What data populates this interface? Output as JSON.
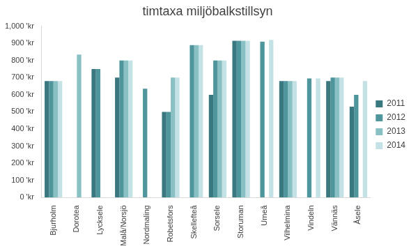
{
  "chart_data": {
    "type": "bar",
    "title": "timtaxa miljöbalkstillsyn",
    "categories": [
      "Bjurholm",
      "Dorotea",
      "Lycksele",
      "Malå/Norsjö",
      "Nordmaling",
      "Robetsfors",
      "Skellefteå",
      "Sorsele",
      "Storuman",
      "Umeå",
      "Vilhelmina",
      "Vindeln",
      "Vännäs",
      "Åsele"
    ],
    "series": [
      {
        "name": "2011",
        "color": "#3a7880",
        "values": [
          680,
          null,
          750,
          700,
          null,
          500,
          null,
          600,
          915,
          null,
          680,
          null,
          680,
          530
        ]
      },
      {
        "name": "2012",
        "color": "#4e969c",
        "values": [
          680,
          null,
          750,
          800,
          635,
          500,
          890,
          800,
          915,
          910,
          680,
          695,
          700,
          600
        ]
      },
      {
        "name": "2013",
        "color": "#89c0c4",
        "values": [
          680,
          835,
          null,
          800,
          null,
          700,
          890,
          800,
          915,
          null,
          680,
          null,
          700,
          null
        ]
      },
      {
        "name": "2014",
        "color": "#c4e2e5",
        "values": [
          680,
          null,
          null,
          800,
          null,
          700,
          890,
          800,
          915,
          920,
          680,
          695,
          700,
          680
        ]
      }
    ],
    "ylim": [
      0,
      1000
    ],
    "yticks": [
      {
        "value": 0,
        "label": "0 'kr"
      },
      {
        "value": 100,
        "label": "100 'kr"
      },
      {
        "value": 200,
        "label": "200 'kr"
      },
      {
        "value": 300,
        "label": "300 'kr"
      },
      {
        "value": 400,
        "label": "400 'kr"
      },
      {
        "value": 500,
        "label": "500 'kr"
      },
      {
        "value": 600,
        "label": "600 'kr"
      },
      {
        "value": 700,
        "label": "700 'kr"
      },
      {
        "value": 800,
        "label": "800 'kr"
      },
      {
        "value": 900,
        "label": "900 'kr"
      },
      {
        "value": 1000,
        "label": "1,000 'kr"
      }
    ],
    "grid": false,
    "legend": "right"
  }
}
